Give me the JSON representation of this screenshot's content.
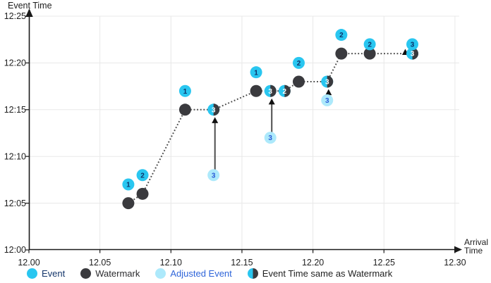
{
  "axes": {
    "y_title": "Event Time",
    "x_title_lines": [
      "Arrival",
      "Time"
    ]
  },
  "legend": {
    "items": [
      {
        "label": "Event",
        "marker": "event"
      },
      {
        "label": "Watermark",
        "marker": "watermark"
      },
      {
        "label": "Adjusted Event",
        "marker": "adjusted"
      },
      {
        "label": "Event Time same as Watermark",
        "marker": "half"
      }
    ]
  },
  "colors": {
    "event": "#29c6f0",
    "watermark": "#3a3a3e",
    "adjusted_event": "#ade9fb",
    "event_number_text": "#0d3269",
    "adjusted_number_text": "#2a5bd7",
    "half_number_text": "#ffffff",
    "axis": "#1a1a1a",
    "grid": "#e8e8e8",
    "dotted_line": "#4a4a4a",
    "arrow": "#4d4d4d",
    "arrow_head": "#111111",
    "tick_text": "#1f1f1f",
    "legend_label_colors": [
      "#15366b",
      "#2b2b2e",
      "#2e64d9",
      "#1f1f1f"
    ]
  },
  "chart_data": {
    "type": "scatter",
    "title": "",
    "xlabel": "Arrival Time",
    "ylabel": "Event Time",
    "x_ticks": [
      "12.00",
      "12.05",
      "12.10",
      "12.15",
      "12.20",
      "12.25",
      "12.30"
    ],
    "y_ticks": [
      "12:00",
      "12:05",
      "12:10",
      "12:15",
      "12:20",
      "12:25"
    ],
    "x_range": [
      12.0,
      12.3
    ],
    "y_range_minutes_after_12": [
      0,
      25
    ],
    "grid": true,
    "legend_position": "bottom",
    "series": [
      {
        "name": "Event",
        "marker": "event",
        "points": [
          {
            "label": "1",
            "arrival": 12.07,
            "event_time": "12:07",
            "t": 7
          },
          {
            "label": "2",
            "arrival": 12.08,
            "event_time": "12:08",
            "t": 8
          },
          {
            "label": "1",
            "arrival": 12.11,
            "event_time": "12:17",
            "t": 17
          },
          {
            "label": "1",
            "arrival": 12.16,
            "event_time": "12:19",
            "t": 19
          },
          {
            "label": "2",
            "arrival": 12.19,
            "event_time": "12:20",
            "t": 20
          },
          {
            "label": "2",
            "arrival": 12.22,
            "event_time": "12:23",
            "t": 23
          },
          {
            "label": "2",
            "arrival": 12.24,
            "event_time": "12:22",
            "t": 22
          },
          {
            "label": "3",
            "arrival": 12.27,
            "event_time": "12:22",
            "t": 22
          }
        ]
      },
      {
        "name": "Watermark",
        "marker": "watermark",
        "points": [
          {
            "arrival": 12.07,
            "event_time": "12:05",
            "t": 5
          },
          {
            "arrival": 12.08,
            "event_time": "12:06",
            "t": 6
          },
          {
            "arrival": 12.11,
            "event_time": "12:15",
            "t": 15
          },
          {
            "arrival": 12.16,
            "event_time": "12:17",
            "t": 17
          },
          {
            "arrival": 12.19,
            "event_time": "12:18",
            "t": 18
          },
          {
            "arrival": 12.22,
            "event_time": "12:21",
            "t": 21
          },
          {
            "arrival": 12.24,
            "event_time": "12:21",
            "t": 21
          }
        ]
      },
      {
        "name": "Adjusted Event",
        "marker": "adjusted",
        "points": [
          {
            "label": "3",
            "arrival": 12.13,
            "event_time": "12:08",
            "t": 8
          },
          {
            "label": "3",
            "arrival": 12.17,
            "event_time": "12:12",
            "t": 12
          },
          {
            "label": "3",
            "arrival": 12.21,
            "event_time": "12:16",
            "t": 16
          }
        ]
      },
      {
        "name": "Event Time same as Watermark",
        "marker": "half",
        "points": [
          {
            "label": "3",
            "arrival": 12.13,
            "event_time": "12:15",
            "t": 15
          },
          {
            "label": "3",
            "arrival": 12.17,
            "event_time": "12:17",
            "t": 17
          },
          {
            "label": "2",
            "arrival": 12.18,
            "event_time": "12:17",
            "t": 17
          },
          {
            "label": "3",
            "arrival": 12.21,
            "event_time": "12:18",
            "t": 18
          },
          {
            "label": "3",
            "arrival": 12.27,
            "event_time": "12:21",
            "t": 21
          }
        ]
      }
    ],
    "watermark_line": [
      [
        12.07,
        5
      ],
      [
        12.08,
        6
      ],
      [
        12.11,
        15
      ],
      [
        12.13,
        15
      ],
      [
        12.16,
        17
      ],
      [
        12.17,
        17
      ],
      [
        12.18,
        17
      ],
      [
        12.19,
        18
      ],
      [
        12.21,
        18
      ],
      [
        12.22,
        21
      ],
      [
        12.24,
        21
      ],
      [
        12.27,
        21
      ]
    ],
    "adjustment_arrows": [
      {
        "arrival": 12.131,
        "from_t": 8.4,
        "to_t": 14.2
      },
      {
        "arrival": 12.171,
        "from_t": 12.6,
        "to_t": 16.2
      },
      {
        "arrival": 12.211,
        "from_t": 16.1,
        "to_t": 17.2
      },
      {
        "arrival": 12.265,
        "from_t": 20.9,
        "to_t": 21.5
      }
    ]
  }
}
